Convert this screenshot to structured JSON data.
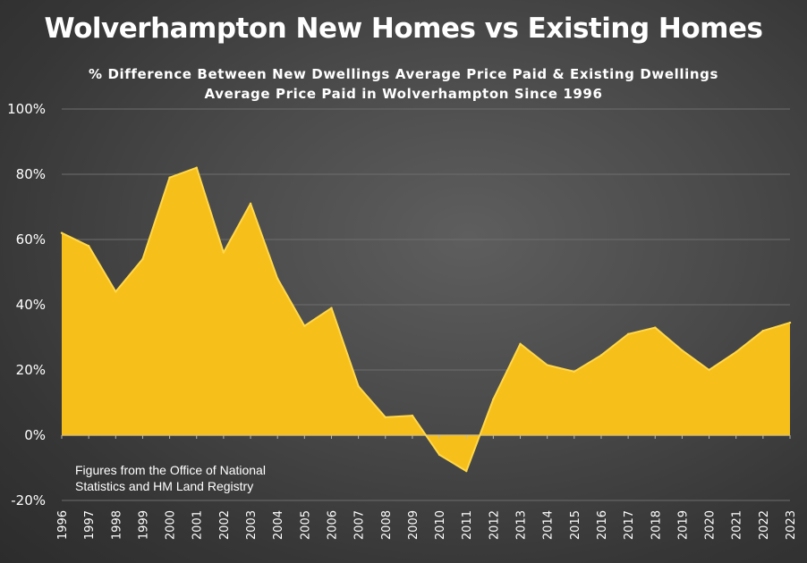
{
  "chart_data": {
    "type": "area",
    "title": "Wolverhampton New Homes vs Existing Homes",
    "subtitle": [
      "% Difference Between New Dwellings Average Price Paid & Existing Dwellings",
      "Average Price Paid in Wolverhampton Since 1996"
    ],
    "xlabel": "",
    "ylabel": "",
    "ylim": [
      -20,
      100
    ],
    "y_ticks": [
      "-20%",
      "0%",
      "20%",
      "40%",
      "60%",
      "80%",
      "100%"
    ],
    "y_tick_values": [
      -20,
      0,
      20,
      40,
      60,
      80,
      100
    ],
    "x": [
      "1996",
      "1997",
      "1998",
      "1999",
      "2000",
      "2001",
      "2002",
      "2003",
      "2004",
      "2005",
      "2006",
      "2007",
      "2008",
      "2009",
      "2010",
      "2011",
      "2012",
      "2013",
      "2014",
      "2015",
      "2016",
      "2017",
      "2018",
      "2019",
      "2020",
      "2021",
      "2022",
      "2023"
    ],
    "series": [
      {
        "values": [
          62,
          58,
          44,
          54,
          79,
          82,
          56,
          71,
          48,
          33.5,
          39,
          15,
          5.5,
          6,
          -6,
          -11,
          11,
          28,
          21.5,
          19.5,
          24.5,
          31,
          33,
          26,
          20,
          25.5,
          32,
          34.5
        ]
      }
    ],
    "grid": true,
    "legend": "none",
    "annotation": [
      "Figures from the Office of National",
      "Statistics and HM Land Registry"
    ],
    "colors": {
      "fill": "#f7bf1a",
      "stroke": "#ffd84a",
      "grid": "#6e6e6e",
      "axis": "#b8b8b8"
    }
  }
}
